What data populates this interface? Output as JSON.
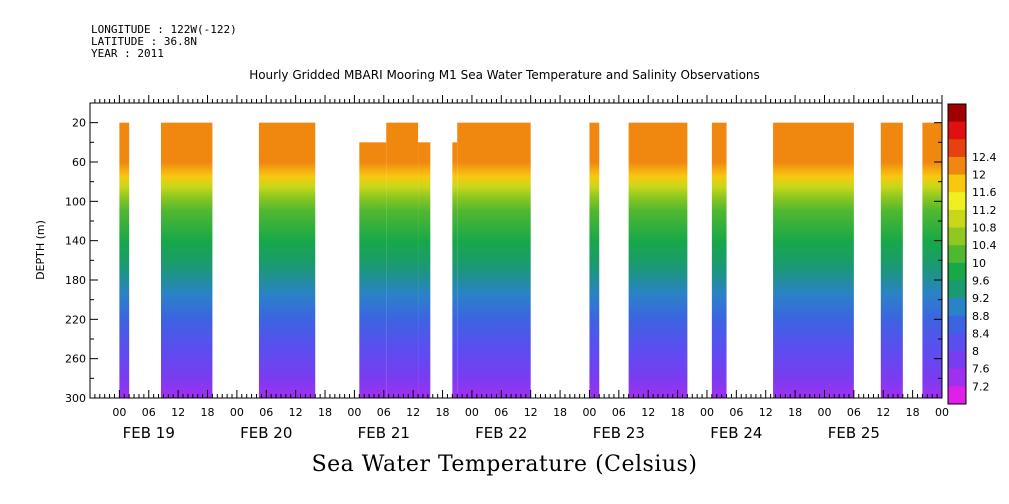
{
  "meta": {
    "longitude": "LONGITUDE : 122W(-122)",
    "latitude": "LATITUDE : 36.8N",
    "year": "YEAR : 2011"
  },
  "chart_data": {
    "type": "heatmap",
    "title": "Hourly Gridded MBARI Mooring M1 Sea Water Temperature and Salinity Observations",
    "ylabel": "DEPTH (m)",
    "xlabel": "",
    "colorbar_label": "Sea Water Temperature (Celsius)",
    "y_axis": {
      "min": 0,
      "max": 300,
      "inverted": true,
      "ticks": [
        20,
        60,
        100,
        140,
        180,
        220,
        260,
        300
      ]
    },
    "x_axis": {
      "unit": "hours since FEB 19 00:00",
      "min": -6,
      "max": 168,
      "hour_ticks": [
        "00",
        "06",
        "12",
        "18",
        "00",
        "06",
        "12",
        "18",
        "00",
        "06",
        "12",
        "18",
        "00",
        "06",
        "12",
        "18",
        "00",
        "06",
        "12",
        "18",
        "00",
        "06",
        "12",
        "18",
        "00",
        "06",
        "12",
        "18",
        "00"
      ],
      "day_labels": [
        {
          "text": "FEB 19",
          "hour": 6
        },
        {
          "text": "FEB 20",
          "hour": 30
        },
        {
          "text": "FEB 21",
          "hour": 54
        },
        {
          "text": "FEB 22",
          "hour": 78
        },
        {
          "text": "FEB 23",
          "hour": 102
        },
        {
          "text": "FEB 24",
          "hour": 126
        },
        {
          "text": "FEB 25",
          "hour": 150
        }
      ]
    },
    "colorbar": {
      "levels": [
        7.2,
        7.6,
        8,
        8.4,
        8.8,
        9.2,
        9.6,
        10,
        10.4,
        10.8,
        11.2,
        11.6,
        12,
        12.4
      ],
      "labels": [
        "7.2",
        "7.6",
        "8",
        "8.4",
        "8.8",
        "9.2",
        "9.6",
        "10",
        "10.4",
        "10.8",
        "11.2",
        "11.6",
        "12",
        "12.4"
      ],
      "colors": [
        "#e020e8",
        "#a030f0",
        "#7a3cf0",
        "#5a4ef0",
        "#3c64e0",
        "#2a82c8",
        "#1a9a70",
        "#18a848",
        "#50b830",
        "#90c820",
        "#c8d818",
        "#f0f020",
        "#f8c810",
        "#f08810",
        "#e84010",
        "#e01010",
        "#a00000"
      ]
    },
    "data_segments": [
      {
        "start": 0.0,
        "end": 2.0,
        "top": 20
      },
      {
        "start": 8.5,
        "end": 19.0,
        "top": 20
      },
      {
        "start": 28.5,
        "end": 40.0,
        "top": 20
      },
      {
        "start": 49.0,
        "end": 54.5,
        "top": 40
      },
      {
        "start": 54.5,
        "end": 61.0,
        "top": 20
      },
      {
        "start": 61.0,
        "end": 63.5,
        "top": 40
      },
      {
        "start": 68.0,
        "end": 69.0,
        "top": 40
      },
      {
        "start": 69.0,
        "end": 84.0,
        "top": 20
      },
      {
        "start": 96.0,
        "end": 98.0,
        "top": 20
      },
      {
        "start": 104.0,
        "end": 116.0,
        "top": 20
      },
      {
        "start": 121.0,
        "end": 124.0,
        "top": 20
      },
      {
        "start": 133.5,
        "end": 150.0,
        "top": 20
      },
      {
        "start": 155.5,
        "end": 160.0,
        "top": 20
      },
      {
        "start": 164.0,
        "end": 168.0,
        "top": 20
      }
    ],
    "depth_profile": [
      {
        "depth": 20,
        "value": 12.2
      },
      {
        "depth": 60,
        "value": 12.0
      },
      {
        "depth": 75,
        "value": 11.6
      },
      {
        "depth": 85,
        "value": 11.0
      },
      {
        "depth": 95,
        "value": 10.4
      },
      {
        "depth": 110,
        "value": 10.0
      },
      {
        "depth": 140,
        "value": 9.6
      },
      {
        "depth": 165,
        "value": 9.2
      },
      {
        "depth": 195,
        "value": 8.8
      },
      {
        "depth": 220,
        "value": 8.4
      },
      {
        "depth": 250,
        "value": 8.0
      },
      {
        "depth": 280,
        "value": 7.6
      },
      {
        "depth": 300,
        "value": 7.4
      }
    ]
  }
}
